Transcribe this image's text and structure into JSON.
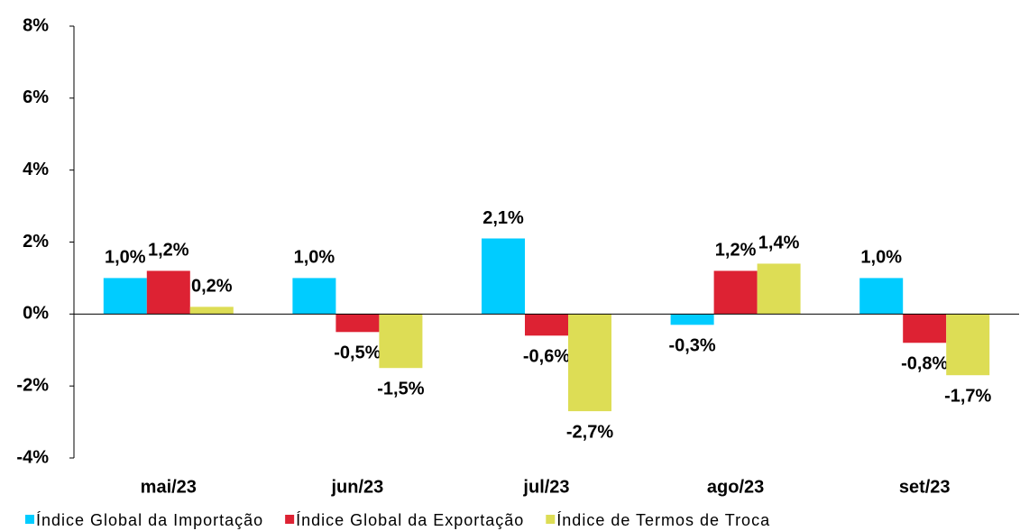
{
  "chart_data": {
    "type": "bar",
    "categories": [
      "mai/23",
      "jun/23",
      "jul/23",
      "ago/23",
      "set/23"
    ],
    "series": [
      {
        "name": "Índice Global da Importação",
        "color": "#00ccff",
        "values": [
          1.0,
          1.0,
          2.1,
          -0.3,
          1.0
        ],
        "value_labels": [
          "1,0%",
          "1,0%",
          "2,1%",
          "-0,3%",
          "1,0%"
        ]
      },
      {
        "name": "Índice Global da Exportação",
        "color": "#dd2233",
        "values": [
          1.2,
          -0.5,
          -0.6,
          1.2,
          -0.8
        ],
        "value_labels": [
          "1,2%",
          "-0,5%",
          "-0,6%",
          "1,2%",
          "-0,8%"
        ]
      },
      {
        "name": "Índice de Termos de Troca",
        "color": "#dddd55",
        "values": [
          0.2,
          -1.5,
          -2.7,
          1.4,
          -1.7
        ],
        "value_labels": [
          "0,2%",
          "-1,5%",
          "-2,7%",
          "1,4%",
          "-1,7%"
        ]
      }
    ],
    "ylim": [
      -4,
      8
    ],
    "yticks": [
      {
        "value": -4,
        "label": "-4%"
      },
      {
        "value": -2,
        "label": "-2%"
      },
      {
        "value": 0,
        "label": "0%"
      },
      {
        "value": 2,
        "label": "2%"
      },
      {
        "value": 4,
        "label": "4%"
      },
      {
        "value": 6,
        "label": "6%"
      },
      {
        "value": 8,
        "label": "8%"
      }
    ],
    "legend": "bottom"
  }
}
